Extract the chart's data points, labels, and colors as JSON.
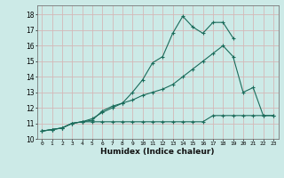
{
  "xlabel": "Humidex (Indice chaleur)",
  "background_color": "#cceae7",
  "grid_color": "#d4b8b8",
  "line_color": "#1a6b5a",
  "xlim": [
    -0.5,
    23.5
  ],
  "ylim": [
    10,
    18.6
  ],
  "yticks": [
    10,
    11,
    12,
    13,
    14,
    15,
    16,
    17,
    18
  ],
  "xtick_labels": [
    "0",
    "1",
    "2",
    "3",
    "4",
    "5",
    "6",
    "7",
    "8",
    "9",
    "10",
    "11",
    "12",
    "13",
    "14",
    "15",
    "16",
    "17",
    "18",
    "19",
    "20",
    "21",
    "22",
    "23"
  ],
  "line1_x": [
    0,
    1,
    2,
    3,
    4,
    5,
    6,
    7,
    8,
    9,
    10,
    11,
    12,
    13,
    14,
    15,
    16,
    17,
    18,
    19,
    20,
    21,
    22,
    23
  ],
  "line1_y": [
    10.5,
    10.6,
    10.7,
    11.0,
    11.1,
    11.1,
    11.1,
    11.1,
    11.1,
    11.1,
    11.1,
    11.1,
    11.1,
    11.1,
    11.1,
    11.1,
    11.1,
    11.5,
    11.5,
    11.5,
    11.5,
    11.5,
    11.5,
    11.5
  ],
  "line2_x": [
    0,
    1,
    2,
    3,
    4,
    5,
    6,
    7,
    8,
    9,
    10,
    11,
    12,
    13,
    14,
    15,
    16,
    17,
    18,
    19,
    20,
    21,
    22,
    23
  ],
  "line2_y": [
    10.5,
    10.6,
    10.7,
    11.0,
    11.1,
    11.3,
    11.7,
    12.0,
    12.3,
    12.5,
    12.8,
    13.0,
    13.2,
    13.5,
    14.0,
    14.5,
    15.0,
    15.5,
    16.0,
    15.3,
    13.0,
    13.3,
    11.5,
    11.5
  ],
  "line3_x": [
    0,
    1,
    2,
    3,
    4,
    5,
    6,
    7,
    8,
    9,
    10,
    11,
    12,
    13,
    14,
    15,
    16,
    17,
    18,
    19,
    20,
    21,
    22,
    23
  ],
  "line3_y": [
    10.5,
    10.6,
    10.7,
    11.0,
    11.1,
    11.2,
    11.8,
    12.1,
    12.3,
    13.0,
    13.8,
    14.9,
    15.3,
    16.8,
    17.9,
    17.2,
    16.8,
    17.5,
    17.5,
    16.5,
    null,
    null,
    null,
    null
  ]
}
